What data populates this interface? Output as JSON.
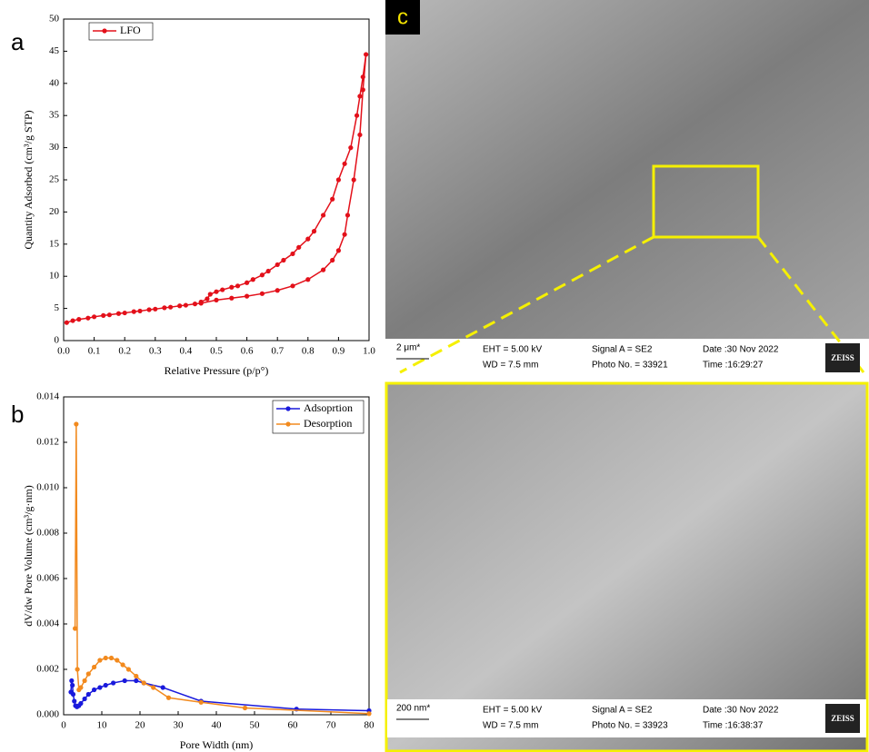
{
  "chart_data": [
    {
      "type": "line",
      "panel": "a",
      "xlabel": "Relative Pressure (p/p°)",
      "ylabel": "Quantity Adsorbed (cm³/g STP)",
      "xlim": [
        0,
        1
      ],
      "ylim": [
        0,
        50
      ],
      "xticks": [
        {
          "value": 0,
          "label": "0.0"
        },
        {
          "value": 0.1,
          "label": "0.1"
        },
        {
          "value": 0.2,
          "label": "0.2"
        },
        {
          "value": 0.3,
          "label": "0.3"
        },
        {
          "value": 0.4,
          "label": "0.4"
        },
        {
          "value": 0.5,
          "label": "0.5"
        },
        {
          "value": 0.6,
          "label": "0.6"
        },
        {
          "value": 0.7,
          "label": "0.7"
        },
        {
          "value": 0.8,
          "label": "0.8"
        },
        {
          "value": 0.9,
          "label": "0.9"
        },
        {
          "value": 1,
          "label": "1.0"
        }
      ],
      "yticks": [
        0,
        5,
        10,
        15,
        20,
        25,
        30,
        35,
        40,
        45,
        50
      ],
      "legend": "upper left",
      "series": [
        {
          "name": "LFO",
          "color": "#e3101a",
          "x": [
            0.01,
            0.03,
            0.05,
            0.08,
            0.1,
            0.13,
            0.15,
            0.18,
            0.2,
            0.23,
            0.25,
            0.28,
            0.3,
            0.33,
            0.35,
            0.38,
            0.4,
            0.43,
            0.45,
            0.5,
            0.55,
            0.6,
            0.65,
            0.7,
            0.75,
            0.8,
            0.85,
            0.88,
            0.9,
            0.92,
            0.93,
            0.95,
            0.97,
            0.98,
            0.99,
            0.98,
            0.97,
            0.96,
            0.94,
            0.92,
            0.9,
            0.88,
            0.85,
            0.82,
            0.8,
            0.77,
            0.75,
            0.72,
            0.7,
            0.67,
            0.65,
            0.62,
            0.6,
            0.57,
            0.55,
            0.52,
            0.5,
            0.48,
            0.47,
            0.45
          ],
          "values": [
            2.8,
            3.1,
            3.3,
            3.5,
            3.7,
            3.9,
            4.0,
            4.2,
            4.3,
            4.5,
            4.6,
            4.8,
            4.9,
            5.1,
            5.2,
            5.4,
            5.5,
            5.7,
            5.8,
            6.3,
            6.6,
            6.9,
            7.3,
            7.8,
            8.5,
            9.5,
            11,
            12.5,
            14,
            16.5,
            19.5,
            25,
            32,
            39,
            44.5,
            41,
            38,
            35,
            30,
            27.5,
            25,
            22,
            19.5,
            17,
            15.8,
            14.5,
            13.5,
            12.5,
            11.8,
            10.8,
            10.2,
            9.5,
            9,
            8.5,
            8.3,
            7.9,
            7.6,
            7.2,
            6.5,
            6.0
          ]
        }
      ]
    },
    {
      "type": "line",
      "panel": "b",
      "xlabel": "Pore Width (nm)",
      "ylabel": "dV/dw Pore Volume (cm³/g·nm)",
      "xlim": [
        0,
        80
      ],
      "ylim": [
        0,
        0.014
      ],
      "xticks": [
        0,
        10,
        20,
        30,
        40,
        50,
        60,
        70,
        80
      ],
      "yticks": [
        {
          "value": 0,
          "label": "0.000"
        },
        {
          "value": 0.002,
          "label": "0.002"
        },
        {
          "value": 0.004,
          "label": "0.004"
        },
        {
          "value": 0.006,
          "label": "0.006"
        },
        {
          "value": 0.008,
          "label": "0.008"
        },
        {
          "value": 0.01,
          "label": "0.010"
        },
        {
          "value": 0.012,
          "label": "0.012"
        },
        {
          "value": 0.014,
          "label": "0.014"
        }
      ],
      "legend": "upper right",
      "series": [
        {
          "name": "Adsoprtion",
          "color": "#1a1adc",
          "x": [
            1.9,
            2.1,
            2.3,
            2.5,
            2.8,
            3.1,
            3.5,
            4,
            4.5,
            5.5,
            6.5,
            8,
            9.5,
            11,
            13,
            16,
            19,
            21,
            26,
            36,
            61,
            80
          ],
          "values": [
            0.001,
            0.0015,
            0.0013,
            0.0009,
            0.0006,
            0.0004,
            0.00035,
            0.0004,
            0.0005,
            0.0007,
            0.0009,
            0.0011,
            0.0012,
            0.0013,
            0.0014,
            0.0015,
            0.0015,
            0.0014,
            0.0012,
            0.0006,
            0.00025,
            0.00018
          ]
        },
        {
          "name": "Desorption",
          "color": "#f28a1e",
          "x": [
            3.0,
            3.3,
            3.6,
            4,
            4.5,
            5.5,
            6.5,
            8,
            9.5,
            11,
            12.5,
            14,
            15.5,
            17,
            19,
            21,
            23.5,
            27.5,
            36,
            47.5,
            80
          ],
          "values": [
            0.0038,
            0.0128,
            0.002,
            0.0011,
            0.0012,
            0.0015,
            0.0018,
            0.0021,
            0.0024,
            0.0025,
            0.0025,
            0.0024,
            0.0022,
            0.002,
            0.0017,
            0.0014,
            0.0012,
            0.00075,
            0.00055,
            0.0003,
            5e-05
          ]
        }
      ]
    }
  ],
  "sem": {
    "panel": "c",
    "images": [
      {
        "scale": "2 μm*",
        "eht": "EHT = 5.00 kV",
        "wd": "WD = 7.5 mm",
        "signal": "Signal A = SE2",
        "photo": "Photo No. = 33921",
        "date": "Date :30 Nov 2022",
        "time": "Time :16:29:27",
        "brand": "ZEISS"
      },
      {
        "scale": "200 nm*",
        "eht": "EHT = 5.00 kV",
        "wd": "WD = 7.5 mm",
        "signal": "Signal A = SE2",
        "photo": "Photo No. = 33923",
        "date": "Date :30 Nov 2022",
        "time": "Time :16:38:37",
        "brand": "ZEISS"
      }
    ]
  }
}
